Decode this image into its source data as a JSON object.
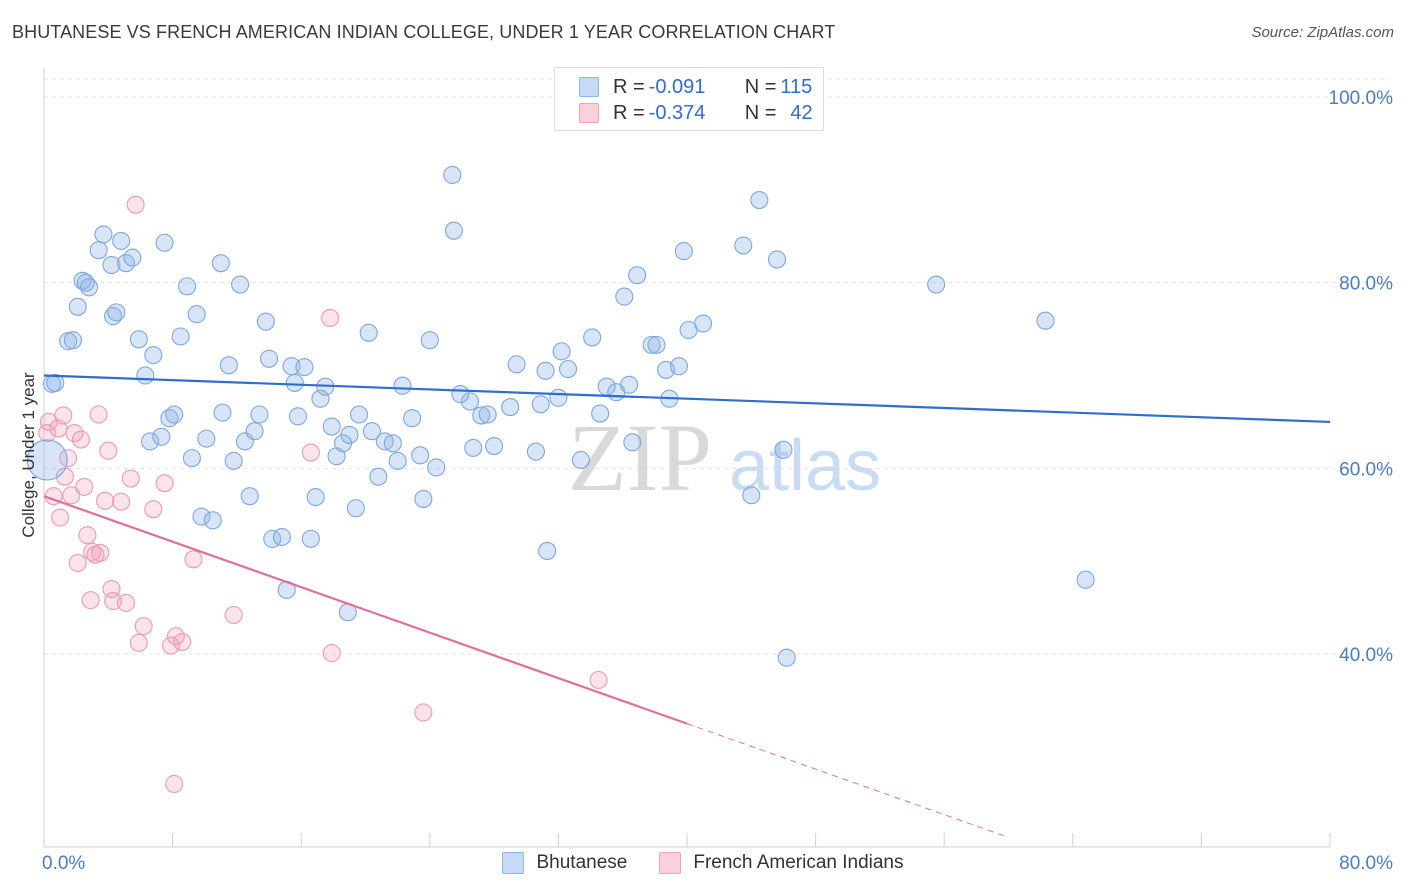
{
  "title": "BHUTANESE VS FRENCH AMERICAN INDIAN COLLEGE, UNDER 1 YEAR CORRELATION CHART",
  "source": "Source: ZipAtlas.com",
  "watermark": {
    "zip": "ZIP",
    "atlas": "atlas"
  },
  "legend": {
    "rows": [
      {
        "r_label": "R = ",
        "r_value": "-0.091",
        "n_label": "N = ",
        "n_value": "115",
        "color": "#8fb4e8"
      },
      {
        "r_label": "R = ",
        "r_value": "-0.374",
        "n_label": "N = ",
        "n_value": "42",
        "color": "#f0a3bb"
      }
    ]
  },
  "bottom_legend": {
    "series1": "Bhutanese",
    "series2": "French American Indians"
  },
  "chart_data": {
    "type": "scatter",
    "title": "BHUTANESE VS FRENCH AMERICAN INDIAN COLLEGE, UNDER 1 YEAR CORRELATION CHART",
    "xlabel": "",
    "ylabel": "College, Under 1 year",
    "xlim": [
      0,
      80
    ],
    "ylim": [
      20,
      104
    ],
    "x_tick_labels": [
      "0.0%",
      "80.0%"
    ],
    "y_tick_labels": [
      "40.0%",
      "60.0%",
      "80.0%",
      "100.0%"
    ],
    "y_tick_values": [
      40,
      60,
      80,
      100
    ],
    "series": [
      {
        "name": "Bhutanese",
        "color": "#8fb4e8",
        "line_color": "#2f6dd0",
        "trend": {
          "x0": 0,
          "y0": 70.0,
          "x1": 80,
          "y1": 65.0
        },
        "points": [
          [
            0.2,
            60.9
          ],
          [
            0.5,
            69.1
          ],
          [
            0.7,
            69.2
          ],
          [
            1.5,
            73.7
          ],
          [
            1.8,
            73.8
          ],
          [
            2.1,
            77.4
          ],
          [
            2.4,
            80.2
          ],
          [
            2.6,
            80.0
          ],
          [
            2.8,
            79.5
          ],
          [
            3.4,
            83.5
          ],
          [
            3.7,
            85.2
          ],
          [
            4.2,
            81.9
          ],
          [
            4.3,
            76.4
          ],
          [
            4.5,
            76.8
          ],
          [
            4.8,
            84.5
          ],
          [
            5.1,
            82.1
          ],
          [
            5.5,
            82.7
          ],
          [
            5.9,
            73.9
          ],
          [
            6.3,
            70.0
          ],
          [
            6.6,
            62.9
          ],
          [
            6.8,
            72.2
          ],
          [
            7.3,
            63.4
          ],
          [
            7.5,
            84.3
          ],
          [
            7.8,
            65.4
          ],
          [
            8.1,
            65.8
          ],
          [
            8.5,
            74.2
          ],
          [
            8.9,
            79.6
          ],
          [
            9.2,
            61.1
          ],
          [
            9.5,
            76.6
          ],
          [
            9.8,
            54.8
          ],
          [
            10.1,
            63.2
          ],
          [
            10.5,
            54.4
          ],
          [
            11.0,
            82.1
          ],
          [
            11.1,
            66.0
          ],
          [
            11.5,
            71.1
          ],
          [
            11.8,
            60.8
          ],
          [
            12.2,
            79.8
          ],
          [
            12.5,
            62.9
          ],
          [
            12.8,
            57.0
          ],
          [
            13.1,
            64.0
          ],
          [
            13.4,
            65.8
          ],
          [
            13.8,
            75.8
          ],
          [
            14.0,
            71.8
          ],
          [
            14.2,
            52.4
          ],
          [
            14.8,
            52.6
          ],
          [
            15.4,
            71.0
          ],
          [
            15.6,
            69.2
          ],
          [
            15.8,
            65.6
          ],
          [
            16.2,
            70.9
          ],
          [
            16.6,
            52.4
          ],
          [
            16.9,
            56.9
          ],
          [
            17.2,
            67.5
          ],
          [
            17.5,
            68.8
          ],
          [
            17.9,
            64.5
          ],
          [
            18.2,
            61.3
          ],
          [
            18.6,
            62.7
          ],
          [
            19.0,
            63.6
          ],
          [
            19.4,
            55.7
          ],
          [
            19.6,
            65.8
          ],
          [
            20.2,
            74.6
          ],
          [
            20.4,
            64.0
          ],
          [
            20.8,
            59.1
          ],
          [
            21.2,
            62.9
          ],
          [
            21.7,
            62.7
          ],
          [
            22.0,
            60.8
          ],
          [
            22.3,
            68.9
          ],
          [
            22.9,
            65.4
          ],
          [
            23.4,
            61.4
          ],
          [
            23.6,
            56.7
          ],
          [
            24.0,
            73.8
          ],
          [
            24.4,
            60.1
          ],
          [
            25.4,
            91.6
          ],
          [
            25.5,
            85.6
          ],
          [
            26.5,
            67.2
          ],
          [
            26.7,
            62.2
          ],
          [
            27.2,
            65.7
          ],
          [
            27.6,
            65.8
          ],
          [
            29.0,
            66.6
          ],
          [
            29.4,
            71.2
          ],
          [
            30.6,
            61.8
          ],
          [
            30.9,
            66.9
          ],
          [
            31.2,
            70.5
          ],
          [
            31.3,
            51.1
          ],
          [
            32.0,
            67.6
          ],
          [
            32.2,
            72.6
          ],
          [
            32.6,
            70.7
          ],
          [
            33.4,
            60.9
          ],
          [
            34.1,
            74.1
          ],
          [
            34.6,
            65.9
          ],
          [
            35.0,
            68.8
          ],
          [
            35.6,
            68.2
          ],
          [
            36.1,
            78.5
          ],
          [
            36.4,
            69.0
          ],
          [
            36.6,
            62.8
          ],
          [
            36.9,
            80.8
          ],
          [
            37.8,
            73.3
          ],
          [
            38.1,
            73.3
          ],
          [
            38.7,
            70.6
          ],
          [
            38.9,
            67.5
          ],
          [
            39.5,
            71.0
          ],
          [
            39.8,
            83.4
          ],
          [
            40.1,
            74.9
          ],
          [
            41.0,
            75.6
          ],
          [
            43.5,
            84.0
          ],
          [
            44.0,
            57.1
          ],
          [
            44.5,
            88.9
          ],
          [
            45.6,
            82.5
          ],
          [
            46.0,
            62.0
          ],
          [
            46.2,
            39.6
          ],
          [
            55.5,
            79.8
          ],
          [
            62.3,
            75.9
          ],
          [
            64.8,
            48.0
          ],
          [
            15.1,
            46.9
          ],
          [
            18.9,
            44.5
          ],
          [
            25.9,
            68.0
          ],
          [
            28.0,
            62.4
          ]
        ]
      },
      {
        "name": "French American Indians",
        "color": "#f0a3bb",
        "line_color": "#e07098",
        "trend": {
          "x0": 0,
          "y0": 57.0,
          "x1": 40,
          "y1": 32.5,
          "dashed_to_x": 60
        },
        "points": [
          [
            0.2,
            63.8
          ],
          [
            0.3,
            65.0
          ],
          [
            0.6,
            57.0
          ],
          [
            0.9,
            64.3
          ],
          [
            1.0,
            54.7
          ],
          [
            1.2,
            65.7
          ],
          [
            1.3,
            59.1
          ],
          [
            1.5,
            61.1
          ],
          [
            1.7,
            57.1
          ],
          [
            1.9,
            63.8
          ],
          [
            2.1,
            49.8
          ],
          [
            2.3,
            63.1
          ],
          [
            2.5,
            58.0
          ],
          [
            2.7,
            52.8
          ],
          [
            2.9,
            45.8
          ],
          [
            3.0,
            51.0
          ],
          [
            3.2,
            50.7
          ],
          [
            3.4,
            65.8
          ],
          [
            3.5,
            50.9
          ],
          [
            3.8,
            56.5
          ],
          [
            4.0,
            61.9
          ],
          [
            4.2,
            47.0
          ],
          [
            4.3,
            45.7
          ],
          [
            4.8,
            56.4
          ],
          [
            5.1,
            45.5
          ],
          [
            5.4,
            58.9
          ],
          [
            5.7,
            88.4
          ],
          [
            5.9,
            41.2
          ],
          [
            6.2,
            43.0
          ],
          [
            6.8,
            55.6
          ],
          [
            7.5,
            58.4
          ],
          [
            7.9,
            40.9
          ],
          [
            8.2,
            41.9
          ],
          [
            8.6,
            41.3
          ],
          [
            9.3,
            50.2
          ],
          [
            11.8,
            44.2
          ],
          [
            16.6,
            61.7
          ],
          [
            17.8,
            76.2
          ],
          [
            17.9,
            40.1
          ],
          [
            23.6,
            33.7
          ],
          [
            34.5,
            37.2
          ],
          [
            8.1,
            26.0
          ]
        ]
      }
    ]
  }
}
